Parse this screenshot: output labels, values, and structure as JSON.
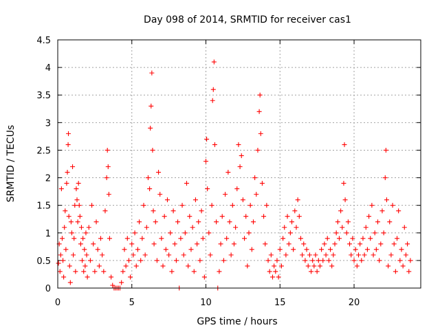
{
  "chart_data": {
    "type": "scatter",
    "title": "Day 098 of 2014, SRMTID for receiver cas1",
    "xlabel": "GPS time / hours",
    "ylabel": "SRMTID / TECUs",
    "xlim": [
      0,
      24.5
    ],
    "ylim": [
      0,
      4.5
    ],
    "xticks": [
      "0",
      "5",
      "10",
      "15",
      "20"
    ],
    "yticks": [
      "0",
      "0.5",
      "1",
      "1.5",
      "2",
      "2.5",
      "3",
      "3.5",
      "4",
      "4.5"
    ],
    "xtick_values": [
      0,
      5,
      10,
      15,
      20
    ],
    "ytick_values": [
      0,
      0.5,
      1,
      1.5,
      2,
      2.5,
      3,
      3.5,
      4,
      4.5
    ],
    "grid": true,
    "marker": "plus",
    "color": "#ff0000",
    "series": [
      {
        "name": "SRMTID",
        "points": [
          [
            0.05,
            0.45
          ],
          [
            0.1,
            0.8
          ],
          [
            0.15,
            0.3
          ],
          [
            0.2,
            0.6
          ],
          [
            0.25,
            1.8
          ],
          [
            0.3,
            0.9
          ],
          [
            0.35,
            0.5
          ],
          [
            0.4,
            0.2
          ],
          [
            0.45,
            1.1
          ],
          [
            0.5,
            1.4
          ],
          [
            0.55,
            0.7
          ],
          [
            0.6,
            1.9
          ],
          [
            0.65,
            2.1
          ],
          [
            0.7,
            2.6
          ],
          [
            0.72,
            2.8
          ],
          [
            0.75,
            1.3
          ],
          [
            0.8,
            0.4
          ],
          [
            0.85,
            0.1
          ],
          [
            0.9,
            1.2
          ],
          [
            0.95,
            1.0
          ],
          [
            1.0,
            2.2
          ],
          [
            1.05,
            0.6
          ],
          [
            1.1,
            0.9
          ],
          [
            1.15,
            1.5
          ],
          [
            1.2,
            0.3
          ],
          [
            1.25,
            1.8
          ],
          [
            1.3,
            1.6
          ],
          [
            1.35,
            1.2
          ],
          [
            1.4,
            1.9
          ],
          [
            1.45,
            1.5
          ],
          [
            1.5,
            1.3
          ],
          [
            1.55,
            0.8
          ],
          [
            1.6,
            1.1
          ],
          [
            1.65,
            0.5
          ],
          [
            1.7,
            0.9
          ],
          [
            1.75,
            0.3
          ],
          [
            1.8,
            0.7
          ],
          [
            1.85,
            0.4
          ],
          [
            1.9,
            1.0
          ],
          [
            1.95,
            0.6
          ],
          [
            2.0,
            0.2
          ],
          [
            2.1,
            1.1
          ],
          [
            2.2,
            0.5
          ],
          [
            2.3,
            1.5
          ],
          [
            2.4,
            0.8
          ],
          [
            2.5,
            0.3
          ],
          [
            2.6,
            1.2
          ],
          [
            2.7,
            0.7
          ],
          [
            2.8,
            0.4
          ],
          [
            2.9,
            0.9
          ],
          [
            3.0,
            0.6
          ],
          [
            3.1,
            0.3
          ],
          [
            3.2,
            1.4
          ],
          [
            3.3,
            2.0
          ],
          [
            3.35,
            2.5
          ],
          [
            3.4,
            2.2
          ],
          [
            3.45,
            1.7
          ],
          [
            3.5,
            0.9
          ],
          [
            3.6,
            0.2
          ],
          [
            3.7,
            0.05
          ],
          [
            3.8,
            0.0
          ],
          [
            3.9,
            0.0
          ],
          [
            4.0,
            0.0
          ],
          [
            4.1,
            0.0
          ],
          [
            4.2,
            0.0
          ],
          [
            4.3,
            0.1
          ],
          [
            4.4,
            0.3
          ],
          [
            4.5,
            0.7
          ],
          [
            4.6,
            0.4
          ],
          [
            4.7,
            0.9
          ],
          [
            4.8,
            0.5
          ],
          [
            4.9,
            0.2
          ],
          [
            5.0,
            0.8
          ],
          [
            5.1,
            0.6
          ],
          [
            5.2,
            1.0
          ],
          [
            5.3,
            0.4
          ],
          [
            5.4,
            0.7
          ],
          [
            5.5,
            1.2
          ],
          [
            5.6,
            0.5
          ],
          [
            5.7,
            0.9
          ],
          [
            5.8,
            1.5
          ],
          [
            5.9,
            0.6
          ],
          [
            6.0,
            1.1
          ],
          [
            6.1,
            2.0
          ],
          [
            6.2,
            1.8
          ],
          [
            6.25,
            2.9
          ],
          [
            6.3,
            3.3
          ],
          [
            6.35,
            3.9
          ],
          [
            6.4,
            2.5
          ],
          [
            6.45,
            1.4
          ],
          [
            6.5,
            0.8
          ],
          [
            6.6,
            1.2
          ],
          [
            6.7,
            0.5
          ],
          [
            6.8,
            2.1
          ],
          [
            6.9,
            1.7
          ],
          [
            7.0,
            0.9
          ],
          [
            7.1,
            0.4
          ],
          [
            7.2,
            1.3
          ],
          [
            7.3,
            0.7
          ],
          [
            7.4,
            1.6
          ],
          [
            7.5,
            0.6
          ],
          [
            7.6,
            1.0
          ],
          [
            7.7,
            0.3
          ],
          [
            7.8,
            1.4
          ],
          [
            7.9,
            0.8
          ],
          [
            8.0,
            0.5
          ],
          [
            8.1,
            1.2
          ],
          [
            8.2,
            0.0
          ],
          [
            8.3,
            0.9
          ],
          [
            8.4,
            1.5
          ],
          [
            8.5,
            0.6
          ],
          [
            8.6,
            1.0
          ],
          [
            8.7,
            1.9
          ],
          [
            8.8,
            0.4
          ],
          [
            8.9,
            1.3
          ],
          [
            9.0,
            0.7
          ],
          [
            9.1,
            1.1
          ],
          [
            9.2,
            0.3
          ],
          [
            9.3,
            1.6
          ],
          [
            9.4,
            0.8
          ],
          [
            9.5,
            1.2
          ],
          [
            9.6,
            0.5
          ],
          [
            9.7,
            1.4
          ],
          [
            9.8,
            0.9
          ],
          [
            9.9,
            0.2
          ],
          [
            10.0,
            2.3
          ],
          [
            10.05,
            2.7
          ],
          [
            10.1,
            1.8
          ],
          [
            10.2,
            1.0
          ],
          [
            10.3,
            0.6
          ],
          [
            10.4,
            1.5
          ],
          [
            10.45,
            3.4
          ],
          [
            10.5,
            3.6
          ],
          [
            10.55,
            4.1
          ],
          [
            10.6,
            2.6
          ],
          [
            10.7,
            1.2
          ],
          [
            10.8,
            0.0
          ],
          [
            10.9,
            0.3
          ],
          [
            11.0,
            0.8
          ],
          [
            11.1,
            1.3
          ],
          [
            11.2,
            0.5
          ],
          [
            11.3,
            1.7
          ],
          [
            11.4,
            0.9
          ],
          [
            11.5,
            2.1
          ],
          [
            11.6,
            1.2
          ],
          [
            11.7,
            0.6
          ],
          [
            11.8,
            1.5
          ],
          [
            11.9,
            0.8
          ],
          [
            12.0,
            1.1
          ],
          [
            12.1,
            1.8
          ],
          [
            12.2,
            2.6
          ],
          [
            12.3,
            2.2
          ],
          [
            12.4,
            2.4
          ],
          [
            12.5,
            1.6
          ],
          [
            12.6,
            0.9
          ],
          [
            12.7,
            1.3
          ],
          [
            12.8,
            0.4
          ],
          [
            12.9,
            1.0
          ],
          [
            13.0,
            1.5
          ],
          [
            13.1,
            0.7
          ],
          [
            13.2,
            1.2
          ],
          [
            13.3,
            2.0
          ],
          [
            13.4,
            1.7
          ],
          [
            13.5,
            2.5
          ],
          [
            13.6,
            3.2
          ],
          [
            13.65,
            3.5
          ],
          [
            13.7,
            2.8
          ],
          [
            13.8,
            1.9
          ],
          [
            13.9,
            1.3
          ],
          [
            14.0,
            0.8
          ],
          [
            14.1,
            1.5
          ],
          [
            14.2,
            0.5
          ],
          [
            14.3,
            0.3
          ],
          [
            14.4,
            0.6
          ],
          [
            14.5,
            0.2
          ],
          [
            14.6,
            0.4
          ],
          [
            14.7,
            0.3
          ],
          [
            14.8,
            0.5
          ],
          [
            14.9,
            0.2
          ],
          [
            15.0,
            0.7
          ],
          [
            15.1,
            0.4
          ],
          [
            15.2,
            0.9
          ],
          [
            15.3,
            1.1
          ],
          [
            15.4,
            0.6
          ],
          [
            15.5,
            1.3
          ],
          [
            15.6,
            0.8
          ],
          [
            15.7,
            1.0
          ],
          [
            15.8,
            1.2
          ],
          [
            15.9,
            0.7
          ],
          [
            16.0,
            1.4
          ],
          [
            16.1,
            1.1
          ],
          [
            16.2,
            1.6
          ],
          [
            16.3,
            1.3
          ],
          [
            16.4,
            0.9
          ],
          [
            16.5,
            0.6
          ],
          [
            16.6,
            0.8
          ],
          [
            16.7,
            0.5
          ],
          [
            16.8,
            0.7
          ],
          [
            16.9,
            0.4
          ],
          [
            17.0,
            0.6
          ],
          [
            17.1,
            0.3
          ],
          [
            17.2,
            0.5
          ],
          [
            17.3,
            0.4
          ],
          [
            17.4,
            0.6
          ],
          [
            17.5,
            0.3
          ],
          [
            17.6,
            0.5
          ],
          [
            17.7,
            0.4
          ],
          [
            17.8,
            0.7
          ],
          [
            17.9,
            0.5
          ],
          [
            18.0,
            0.8
          ],
          [
            18.1,
            0.6
          ],
          [
            18.2,
            0.9
          ],
          [
            18.3,
            0.5
          ],
          [
            18.4,
            0.7
          ],
          [
            18.5,
            0.4
          ],
          [
            18.6,
            0.6
          ],
          [
            18.7,
            0.8
          ],
          [
            18.8,
            1.0
          ],
          [
            18.9,
            1.2
          ],
          [
            19.0,
            0.9
          ],
          [
            19.1,
            1.4
          ],
          [
            19.2,
            1.1
          ],
          [
            19.3,
            1.9
          ],
          [
            19.35,
            2.6
          ],
          [
            19.4,
            1.6
          ],
          [
            19.5,
            1.0
          ],
          [
            19.6,
            1.2
          ],
          [
            19.7,
            0.8
          ],
          [
            19.8,
            0.6
          ],
          [
            19.9,
            0.9
          ],
          [
            20.0,
            0.5
          ],
          [
            20.1,
            0.7
          ],
          [
            20.2,
            0.4
          ],
          [
            20.3,
            0.6
          ],
          [
            20.4,
            0.8
          ],
          [
            20.5,
            0.5
          ],
          [
            20.6,
            0.9
          ],
          [
            20.7,
            0.6
          ],
          [
            20.8,
            1.1
          ],
          [
            20.9,
            0.7
          ],
          [
            21.0,
            1.3
          ],
          [
            21.1,
            0.9
          ],
          [
            21.2,
            1.5
          ],
          [
            21.3,
            0.6
          ],
          [
            21.4,
            1.0
          ],
          [
            21.5,
            0.7
          ],
          [
            21.6,
            1.2
          ],
          [
            21.7,
            0.5
          ],
          [
            21.8,
            0.8
          ],
          [
            21.9,
            1.4
          ],
          [
            22.0,
            1.0
          ],
          [
            22.1,
            2.0
          ],
          [
            22.15,
            2.5
          ],
          [
            22.2,
            1.6
          ],
          [
            22.3,
            0.4
          ],
          [
            22.4,
            1.2
          ],
          [
            22.5,
            0.6
          ],
          [
            22.6,
            1.5
          ],
          [
            22.7,
            0.8
          ],
          [
            22.8,
            0.3
          ],
          [
            22.9,
            0.9
          ],
          [
            23.0,
            1.4
          ],
          [
            23.1,
            0.5
          ],
          [
            23.2,
            0.7
          ],
          [
            23.3,
            0.4
          ],
          [
            23.4,
            1.1
          ],
          [
            23.5,
            0.6
          ],
          [
            23.6,
            0.8
          ],
          [
            23.7,
            0.3
          ],
          [
            23.8,
            0.5
          ]
        ]
      }
    ]
  }
}
